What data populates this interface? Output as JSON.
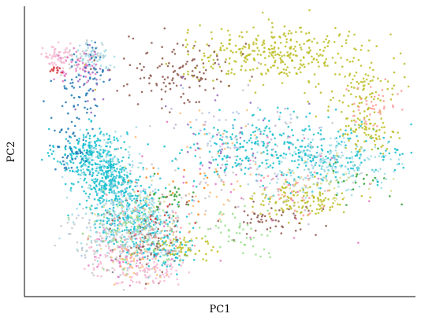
{
  "chart_data": {
    "type": "scatter",
    "title": "",
    "xlabel": "PC1",
    "ylabel": "PC2",
    "xlim": [
      0,
      100
    ],
    "ylim": [
      0,
      100
    ],
    "show_ticks": false,
    "grid": false,
    "legend": "none",
    "spines": [
      "left",
      "bottom"
    ],
    "marker_size": 2,
    "palette": [
      "#1f77b4",
      "#ff7f0e",
      "#2ca02c",
      "#d62728",
      "#9467bd",
      "#8c564b",
      "#e377c2",
      "#7f7f7f",
      "#bcbd22",
      "#17becf",
      "#aec7e8",
      "#ffbb78",
      "#98df8a",
      "#ff9896",
      "#c5b0d5",
      "#c49c94",
      "#f7b6d2",
      "#c7c7c7",
      "#dbdb8d",
      "#9edae5"
    ],
    "series": [
      {
        "color": "#17becf",
        "clusters": [
          {
            "center": [
              17,
              49
            ],
            "spread": [
              4.5,
              4.5
            ],
            "n": 250
          },
          {
            "center": [
              22,
              40
            ],
            "spread": [
              4.0,
              4.0
            ],
            "n": 220
          },
          {
            "center": [
              27,
              28
            ],
            "spread": [
              5.5,
              5.0
            ],
            "n": 250
          },
          {
            "center": [
              75,
              49
            ],
            "spread": [
              13.0,
              5.5
            ],
            "n": 220
          },
          {
            "center": [
              58,
              51
            ],
            "spread": [
              10.0,
              6.0
            ],
            "n": 160
          },
          {
            "center": [
              35,
              16
            ],
            "spread": [
              4.0,
              4.0
            ],
            "n": 100
          }
        ]
      },
      {
        "color": "#bcbd22",
        "clusters": [
          {
            "center": [
              65,
              84
            ],
            "spread": [
              12.0,
              4.5
            ],
            "n": 320
          },
          {
            "center": [
              86,
              70
            ],
            "spread": [
              5.0,
              6.0
            ],
            "n": 100
          },
          {
            "center": [
              70,
              33
            ],
            "spread": [
              7.0,
              3.5
            ],
            "n": 130
          },
          {
            "center": [
              40,
              17
            ],
            "spread": [
              4.0,
              3.0
            ],
            "n": 60
          },
          {
            "center": [
              88,
              55
            ],
            "spread": [
              4.0,
              4.0
            ],
            "n": 70
          }
        ]
      },
      {
        "color": "#9edae5",
        "clusters": [
          {
            "center": [
              27,
              26
            ],
            "spread": [
              6.0,
              6.0
            ],
            "n": 240
          },
          {
            "center": [
              80,
              45
            ],
            "spread": [
              9.0,
              5.0
            ],
            "n": 180
          },
          {
            "center": [
              20,
              46
            ],
            "spread": [
              4.5,
              4.5
            ],
            "n": 100
          },
          {
            "center": [
              17,
              83
            ],
            "spread": [
              2.5,
              2.5
            ],
            "n": 60
          }
        ]
      },
      {
        "color": "#8c564b",
        "clusters": [
          {
            "center": [
              40,
              78
            ],
            "spread": [
              7.0,
              6.0
            ],
            "n": 120
          },
          {
            "center": [
              32,
              20
            ],
            "spread": [
              5.0,
              7.0
            ],
            "n": 60
          },
          {
            "center": [
              62,
              27
            ],
            "spread": [
              6.0,
              4.0
            ],
            "n": 50
          }
        ]
      },
      {
        "color": "#c7c7c7",
        "clusters": [
          {
            "center": [
              24,
              20
            ],
            "spread": [
              7.0,
              7.0
            ],
            "n": 140
          },
          {
            "center": [
              60,
              46
            ],
            "spread": [
              13.0,
              10.0
            ],
            "n": 80
          },
          {
            "center": [
              15,
              82
            ],
            "spread": [
              3.0,
              3.0
            ],
            "n": 40
          }
        ]
      },
      {
        "color": "#f7b6d2",
        "clusters": [
          {
            "center": [
              32,
              8
            ],
            "spread": [
              4.0,
              2.5
            ],
            "n": 80
          },
          {
            "center": [
              8,
              83
            ],
            "spread": [
              1.8,
              2.0
            ],
            "n": 60
          },
          {
            "center": [
              22,
              14
            ],
            "spread": [
              4.0,
              4.0
            ],
            "n": 50
          }
        ]
      },
      {
        "color": "#e377c2",
        "clusters": [
          {
            "center": [
              13,
              80
            ],
            "spread": [
              3.0,
              2.5
            ],
            "n": 50
          },
          {
            "center": [
              60,
              40
            ],
            "spread": [
              12.0,
              10.0
            ],
            "n": 40
          },
          {
            "center": [
              27,
              14
            ],
            "spread": [
              5.0,
              4.0
            ],
            "n": 30
          }
        ]
      },
      {
        "color": "#1f77b4",
        "clusters": [
          {
            "center": [
              15,
              73
            ],
            "spread": [
              3.5,
              6.0
            ],
            "n": 70
          },
          {
            "center": [
              12,
              52
            ],
            "spread": [
              3.0,
              5.0
            ],
            "n": 50
          }
        ]
      },
      {
        "color": "#98df8a",
        "clusters": [
          {
            "center": [
              28,
              22
            ],
            "spread": [
              6.0,
              6.0
            ],
            "n": 70
          },
          {
            "center": [
              55,
              22
            ],
            "spread": [
              6.0,
              3.5
            ],
            "n": 50
          }
        ]
      },
      {
        "color": "#ff9896",
        "clusters": [
          {
            "center": [
              90,
              66
            ],
            "spread": [
              3.0,
              4.0
            ],
            "n": 40
          },
          {
            "center": [
              30,
              24
            ],
            "spread": [
              6.0,
              6.0
            ],
            "n": 50
          },
          {
            "center": [
              68,
              36
            ],
            "spread": [
              6.0,
              4.0
            ],
            "n": 30
          }
        ]
      },
      {
        "color": "#dbdb8d",
        "clusters": [
          {
            "center": [
              30,
              28
            ],
            "spread": [
              6.0,
              6.0
            ],
            "n": 60
          },
          {
            "center": [
              76,
              40
            ],
            "spread": [
              7.0,
              4.0
            ],
            "n": 40
          }
        ]
      },
      {
        "color": "#aec7e8",
        "clusters": [
          {
            "center": [
              25,
              26
            ],
            "spread": [
              6.0,
              7.0
            ],
            "n": 50
          },
          {
            "center": [
              60,
              55
            ],
            "spread": [
              12.0,
              8.0
            ],
            "n": 30
          }
        ]
      },
      {
        "color": "#ffbb78",
        "clusters": [
          {
            "center": [
              50,
              45
            ],
            "spread": [
              10.0,
              10.0
            ],
            "n": 40
          },
          {
            "center": [
              29,
              12
            ],
            "spread": [
              4.0,
              3.0
            ],
            "n": 30
          }
        ]
      },
      {
        "color": "#c5b0d5",
        "clusters": [
          {
            "center": [
              55,
              45
            ],
            "spread": [
              12.0,
              12.0
            ],
            "n": 40
          }
        ]
      },
      {
        "color": "#9467bd",
        "clusters": [
          {
            "center": [
              52,
              57
            ],
            "spread": [
              9.0,
              9.0
            ],
            "n": 30
          },
          {
            "center": [
              16,
              75
            ],
            "spread": [
              3.0,
              5.0
            ],
            "n": 20
          }
        ]
      },
      {
        "color": "#2ca02c",
        "clusters": [
          {
            "center": [
              37,
              34
            ],
            "spread": [
              3.0,
              3.0
            ],
            "n": 25
          },
          {
            "center": [
              85,
              40
            ],
            "spread": [
              5.0,
              4.0
            ],
            "n": 20
          }
        ]
      },
      {
        "color": "#ff7f0e",
        "clusters": [
          {
            "center": [
              40,
              38
            ],
            "spread": [
              6.0,
              6.0
            ],
            "n": 15
          }
        ]
      },
      {
        "color": "#d62728",
        "clusters": [
          {
            "center": [
              8,
              78
            ],
            "spread": [
              1.2,
              1.2
            ],
            "n": 10
          },
          {
            "center": [
              37,
              30
            ],
            "spread": [
              4.0,
              4.0
            ],
            "n": 8
          }
        ]
      },
      {
        "color": "#7f7f7f",
        "clusters": [
          {
            "center": [
              30,
              20
            ],
            "spread": [
              6.0,
              6.0
            ],
            "n": 20
          }
        ]
      },
      {
        "color": "#c49c94",
        "clusters": [
          {
            "center": [
              35,
              22
            ],
            "spread": [
              5.0,
              6.0
            ],
            "n": 20
          }
        ]
      }
    ]
  }
}
